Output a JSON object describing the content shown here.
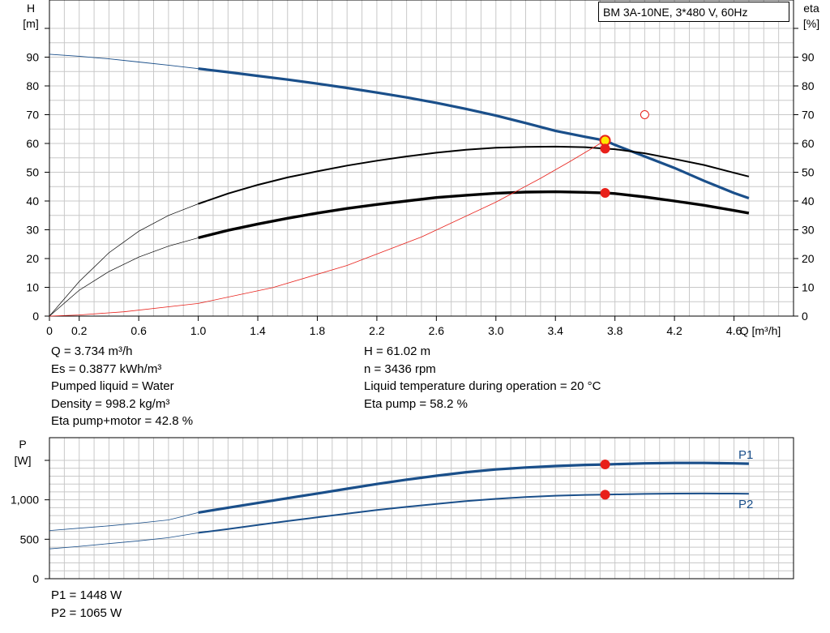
{
  "title": "BM 3A-10NE, 3*480 V, 60Hz",
  "colors": {
    "blue": "#1a4f8a",
    "red": "#e8201a",
    "black": "#000000",
    "grid": "#c8c8c8",
    "marker_fill": "#ffe600"
  },
  "chart_data": [
    {
      "type": "line",
      "y_left_label": [
        "H",
        "[m]"
      ],
      "y_right_label": [
        "eta",
        "[%]"
      ],
      "x_label": "Q [m³/h]",
      "xlim": [
        0,
        5.0
      ],
      "ylim": [
        0,
        100
      ],
      "x_ticks": [
        "0",
        "0.2",
        "0.6",
        "1.0",
        "1.4",
        "1.8",
        "2.2",
        "2.6",
        "3.0",
        "3.4",
        "3.8",
        "4.2",
        "4.6"
      ],
      "x_tick_values": [
        0,
        0.2,
        0.6,
        1.0,
        1.4,
        1.8,
        2.2,
        2.6,
        3.0,
        3.4,
        3.8,
        4.2,
        4.6
      ],
      "y_ticks": [
        0,
        10,
        20,
        30,
        40,
        50,
        60,
        70,
        80,
        90
      ],
      "grid": true,
      "series": [
        {
          "x": [
            0,
            0.2,
            0.4,
            0.6,
            0.8,
            1.0,
            1.2,
            1.4,
            1.6,
            1.8,
            2.0,
            2.2,
            2.4,
            2.6,
            2.8,
            3.0,
            3.2,
            3.4,
            3.6,
            3.734,
            3.8,
            4.0,
            4.2,
            4.4,
            4.6,
            4.7
          ],
          "y": [
            91.0,
            90.3,
            89.4,
            88.3,
            87.2,
            86.0,
            84.8,
            83.5,
            82.2,
            80.8,
            79.3,
            77.7,
            76.0,
            74.1,
            72.0,
            69.7,
            67.1,
            64.4,
            62.3,
            61.02,
            59.5,
            55.5,
            51.5,
            47.0,
            42.8,
            41.0
          ],
          "solid_from": 1.0
        },
        {
          "x": [
            0,
            0.2,
            0.4,
            0.6,
            0.8,
            1.0,
            1.2,
            1.4,
            1.6,
            1.8,
            2.0,
            2.2,
            2.4,
            2.6,
            2.8,
            3.0,
            3.2,
            3.4,
            3.6,
            3.734,
            3.8,
            4.0,
            4.2,
            4.4,
            4.6,
            4.7
          ],
          "y": [
            0,
            12.0,
            22.0,
            29.5,
            35.0,
            39.0,
            42.6,
            45.6,
            48.2,
            50.3,
            52.3,
            54.0,
            55.5,
            56.8,
            57.8,
            58.5,
            58.8,
            58.9,
            58.7,
            58.2,
            58.0,
            56.6,
            54.6,
            52.5,
            49.8,
            48.5
          ],
          "solid_from": 1.0
        },
        {
          "x": [
            0,
            0.2,
            0.4,
            0.6,
            0.8,
            1.0,
            1.2,
            1.4,
            1.6,
            1.8,
            2.0,
            2.2,
            2.4,
            2.6,
            2.8,
            3.0,
            3.2,
            3.4,
            3.6,
            3.734,
            3.8,
            4.0,
            4.2,
            4.4,
            4.6,
            4.7
          ],
          "y": [
            0,
            9.0,
            15.5,
            20.5,
            24.3,
            27.2,
            29.8,
            32.0,
            34.0,
            35.8,
            37.4,
            38.8,
            40.0,
            41.2,
            42.0,
            42.7,
            43.1,
            43.2,
            43.0,
            42.8,
            42.6,
            41.4,
            40.0,
            38.5,
            36.7,
            35.8
          ],
          "solid_from": 1.0
        },
        {
          "x": [
            0,
            0.2,
            0.5,
            1.0,
            1.5,
            2.0,
            2.5,
            3.0,
            3.3,
            3.5,
            3.734
          ],
          "y": [
            0,
            0.4,
            1.5,
            4.4,
            9.9,
            17.6,
            27.5,
            39.6,
            47.9,
            53.8,
            61.02
          ]
        }
      ],
      "points": [
        {
          "x": 3.734,
          "y": 61.02,
          "marker": "duty-point"
        },
        {
          "x": 3.734,
          "y": 58.2,
          "marker": "filled"
        },
        {
          "x": 3.734,
          "y": 42.8,
          "marker": "filled"
        },
        {
          "x": 4.0,
          "y": 70.0,
          "marker": "open"
        }
      ]
    },
    {
      "type": "line",
      "y_left_label": [
        "P",
        "[W]"
      ],
      "xlim": [
        0,
        5.0
      ],
      "ylim": [
        0,
        1500
      ],
      "y_ticks": [
        0,
        500,
        1000
      ],
      "y_tick_labels": [
        "0",
        "500",
        "1,000"
      ],
      "grid": true,
      "series": [
        {
          "name": "P1",
          "x": [
            0,
            0.2,
            0.4,
            0.6,
            0.8,
            1.0,
            1.2,
            1.4,
            1.6,
            1.8,
            2.0,
            2.2,
            2.4,
            2.6,
            2.8,
            3.0,
            3.2,
            3.4,
            3.6,
            3.734,
            3.8,
            4.0,
            4.2,
            4.4,
            4.6,
            4.7
          ],
          "y": [
            610,
            640,
            670,
            705,
            745,
            838,
            900,
            960,
            1020,
            1080,
            1140,
            1200,
            1255,
            1305,
            1350,
            1385,
            1410,
            1428,
            1442,
            1448,
            1452,
            1462,
            1467,
            1467,
            1462,
            1458
          ],
          "solid_from": 1.0
        },
        {
          "name": "P2",
          "x": [
            0,
            0.2,
            0.4,
            0.6,
            0.8,
            1.0,
            1.2,
            1.4,
            1.6,
            1.8,
            2.0,
            2.2,
            2.4,
            2.6,
            2.8,
            3.0,
            3.2,
            3.4,
            3.6,
            3.734,
            3.8,
            4.0,
            4.2,
            4.4,
            4.6,
            4.7
          ],
          "y": [
            378,
            410,
            445,
            480,
            520,
            582,
            630,
            680,
            730,
            778,
            825,
            870,
            910,
            948,
            983,
            1012,
            1035,
            1052,
            1062,
            1065,
            1068,
            1075,
            1079,
            1080,
            1079,
            1077
          ],
          "solid_from": 1.0
        }
      ],
      "points": [
        {
          "x": 3.734,
          "y": 1448,
          "marker": "filled"
        },
        {
          "x": 3.734,
          "y": 1065,
          "marker": "filled"
        }
      ]
    }
  ],
  "info_left": [
    "Q = 3.734 m³/h",
    "Es = 0.3877 kWh/m³",
    "Pumped liquid = Water",
    "Density = 998.2 kg/m³",
    "Eta pump+motor = 42.8 %"
  ],
  "info_right": [
    "H = 61.02 m",
    "n = 3436 rpm",
    "Liquid temperature during operation = 20 °C",
    "Eta pump = 58.2 %"
  ],
  "power_readout": [
    "P1 = 1448 W",
    "P2 = 1065 W"
  ]
}
